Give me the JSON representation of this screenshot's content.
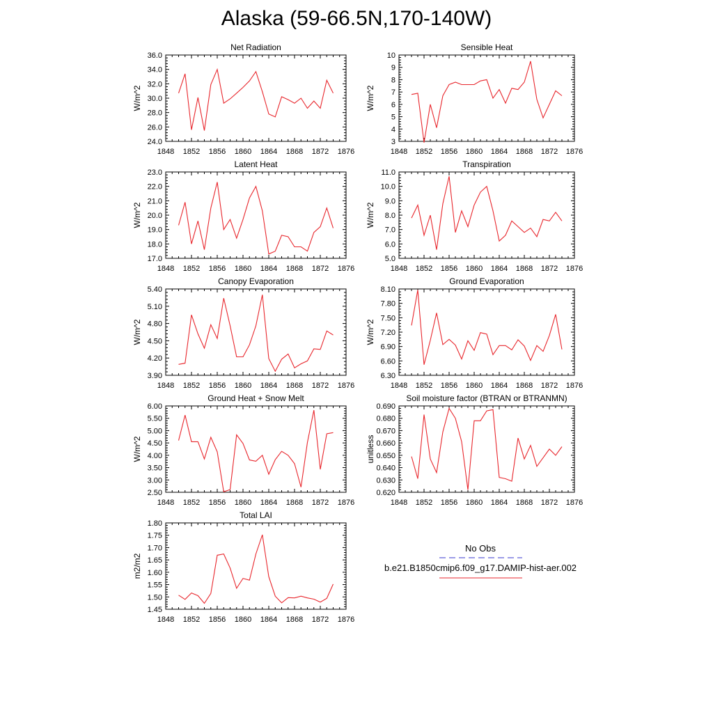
{
  "title": "Alaska (59-66.5N,170-140W)",
  "colors": {
    "model_line": "#e8262c",
    "obs_line": "#3a3acf",
    "axis": "#000000"
  },
  "legend": {
    "obs_label": "No Obs",
    "model_label": "b.e21.B1850cmip6.f09_g17.DAMIP-hist-aer.002"
  },
  "chart_data": [
    {
      "type": "line",
      "title": "Net Radiation",
      "ylabel": "W/m^2",
      "xlim": [
        1848,
        1876
      ],
      "ylim": [
        24,
        36
      ],
      "xticks": [
        "1848",
        "1852",
        "1856",
        "1860",
        "1864",
        "1868",
        "1872",
        "1876"
      ],
      "yticks": [
        "24.0",
        "26.0",
        "28.0",
        "30.0",
        "32.0",
        "34.0",
        "36.0"
      ],
      "x": [
        1850,
        1851,
        1852,
        1853,
        1854,
        1855,
        1856,
        1857,
        1858,
        1859,
        1860,
        1861,
        1862,
        1863,
        1864,
        1865,
        1866,
        1867,
        1868,
        1869,
        1870,
        1871,
        1872,
        1873,
        1874
      ],
      "series": [
        {
          "values": [
            30.7,
            33.4,
            25.6,
            30.1,
            25.5,
            31.9,
            34.0,
            29.3,
            29.9,
            30.7,
            31.5,
            32.4,
            33.7,
            30.9,
            27.8,
            27.4,
            30.2,
            29.8,
            29.3,
            30.0,
            28.6,
            29.6,
            28.6,
            32.5,
            30.7
          ]
        }
      ]
    },
    {
      "type": "line",
      "title": "Sensible Heat",
      "ylabel": "W/m^2",
      "xlim": [
        1848,
        1876
      ],
      "ylim": [
        3,
        10
      ],
      "xticks": [
        "1848",
        "1852",
        "1856",
        "1860",
        "1864",
        "1868",
        "1872",
        "1876"
      ],
      "yticks": [
        "3",
        "4",
        "5",
        "6",
        "7",
        "8",
        "9",
        "10"
      ],
      "x": [
        1850,
        1851,
        1852,
        1853,
        1854,
        1855,
        1856,
        1857,
        1858,
        1859,
        1860,
        1861,
        1862,
        1863,
        1864,
        1865,
        1866,
        1867,
        1868,
        1869,
        1870,
        1871,
        1872,
        1873,
        1874
      ],
      "series": [
        {
          "values": [
            6.8,
            6.9,
            2.9,
            6.0,
            4.1,
            6.7,
            7.6,
            7.8,
            7.6,
            7.6,
            7.6,
            7.9,
            8.0,
            6.5,
            7.2,
            6.1,
            7.3,
            7.2,
            7.8,
            9.5,
            6.4,
            4.9,
            6.0,
            7.1,
            6.7
          ]
        }
      ]
    },
    {
      "type": "line",
      "title": "Latent Heat",
      "ylabel": "W/m^2",
      "xlim": [
        1848,
        1876
      ],
      "ylim": [
        17,
        23
      ],
      "xticks": [
        "1848",
        "1852",
        "1856",
        "1860",
        "1864",
        "1868",
        "1872",
        "1876"
      ],
      "yticks": [
        "17.0",
        "18.0",
        "19.0",
        "20.0",
        "21.0",
        "22.0",
        "23.0"
      ],
      "x": [
        1850,
        1851,
        1852,
        1853,
        1854,
        1855,
        1856,
        1857,
        1858,
        1859,
        1860,
        1861,
        1862,
        1863,
        1864,
        1865,
        1866,
        1867,
        1868,
        1869,
        1870,
        1871,
        1872,
        1873,
        1874
      ],
      "series": [
        {
          "values": [
            19.3,
            20.9,
            18.0,
            19.6,
            17.6,
            20.5,
            22.3,
            19.0,
            19.7,
            18.4,
            19.7,
            21.2,
            22.0,
            20.3,
            17.3,
            17.5,
            18.6,
            18.5,
            17.8,
            17.8,
            17.5,
            18.8,
            19.2,
            20.5,
            19.1
          ]
        }
      ]
    },
    {
      "type": "line",
      "title": "Transpiration",
      "ylabel": "W/m^2",
      "xlim": [
        1848,
        1876
      ],
      "ylim": [
        5,
        11
      ],
      "xticks": [
        "1848",
        "1852",
        "1856",
        "1860",
        "1864",
        "1868",
        "1872",
        "1876"
      ],
      "yticks": [
        "5.0",
        "6.0",
        "7.0",
        "8.0",
        "9.0",
        "10.0",
        "11.0"
      ],
      "x": [
        1850,
        1851,
        1852,
        1853,
        1854,
        1855,
        1856,
        1857,
        1858,
        1859,
        1860,
        1861,
        1862,
        1863,
        1864,
        1865,
        1866,
        1867,
        1868,
        1869,
        1870,
        1871,
        1872,
        1873,
        1874
      ],
      "series": [
        {
          "values": [
            7.8,
            8.7,
            6.6,
            8.0,
            5.6,
            8.8,
            10.7,
            6.8,
            8.3,
            7.2,
            8.7,
            9.6,
            10.0,
            8.3,
            6.2,
            6.6,
            7.6,
            7.2,
            6.8,
            7.1,
            6.5,
            7.7,
            7.6,
            8.2,
            7.6
          ]
        }
      ]
    },
    {
      "type": "line",
      "title": "Canopy Evaporation",
      "ylabel": "W/m^2",
      "xlim": [
        1848,
        1876
      ],
      "ylim": [
        3.9,
        5.4
      ],
      "xticks": [
        "1848",
        "1852",
        "1856",
        "1860",
        "1864",
        "1868",
        "1872",
        "1876"
      ],
      "yticks": [
        "3.90",
        "4.20",
        "4.50",
        "4.80",
        "5.10",
        "5.40"
      ],
      "x": [
        1850,
        1851,
        1852,
        1853,
        1854,
        1855,
        1856,
        1857,
        1858,
        1859,
        1860,
        1861,
        1862,
        1863,
        1864,
        1865,
        1866,
        1867,
        1868,
        1869,
        1870,
        1871,
        1872,
        1873,
        1874
      ],
      "series": [
        {
          "values": [
            4.09,
            4.11,
            4.95,
            4.62,
            4.37,
            4.78,
            4.54,
            5.24,
            4.76,
            4.22,
            4.22,
            4.43,
            4.76,
            5.3,
            4.19,
            3.97,
            4.18,
            4.27,
            4.03,
            4.1,
            4.15,
            4.36,
            4.35,
            4.67,
            4.6
          ]
        }
      ]
    },
    {
      "type": "line",
      "title": "Ground Evaporation",
      "ylabel": "W/m^2",
      "xlim": [
        1848,
        1876
      ],
      "ylim": [
        6.3,
        8.1
      ],
      "xticks": [
        "1848",
        "1852",
        "1856",
        "1860",
        "1864",
        "1868",
        "1872",
        "1876"
      ],
      "yticks": [
        "6.30",
        "6.60",
        "6.90",
        "7.20",
        "7.50",
        "7.80",
        "8.10"
      ],
      "x": [
        1850,
        1851,
        1852,
        1853,
        1854,
        1855,
        1856,
        1857,
        1858,
        1859,
        1860,
        1861,
        1862,
        1863,
        1864,
        1865,
        1866,
        1867,
        1868,
        1869,
        1870,
        1871,
        1872,
        1873,
        1874
      ],
      "series": [
        {
          "values": [
            7.34,
            8.08,
            6.52,
            7.03,
            7.6,
            6.94,
            7.05,
            6.93,
            6.64,
            7.02,
            6.82,
            7.19,
            7.16,
            6.73,
            6.92,
            6.92,
            6.83,
            7.04,
            6.91,
            6.61,
            6.92,
            6.8,
            7.13,
            7.57,
            6.84
          ]
        }
      ]
    },
    {
      "type": "line",
      "title": "Ground Heat + Snow Melt",
      "ylabel": "W/m^2",
      "xlim": [
        1848,
        1876
      ],
      "ylim": [
        2.5,
        6.0
      ],
      "xticks": [
        "1848",
        "1852",
        "1856",
        "1860",
        "1864",
        "1868",
        "1872",
        "1876"
      ],
      "yticks": [
        "2.50",
        "3.00",
        "3.50",
        "4.00",
        "4.50",
        "5.00",
        "5.50",
        "6.00"
      ],
      "x": [
        1850,
        1851,
        1852,
        1853,
        1854,
        1855,
        1856,
        1857,
        1858,
        1859,
        1860,
        1861,
        1862,
        1863,
        1864,
        1865,
        1866,
        1867,
        1868,
        1869,
        1870,
        1871,
        1872,
        1873,
        1874
      ],
      "series": [
        {
          "values": [
            4.6,
            5.63,
            4.55,
            4.55,
            3.85,
            4.73,
            4.14,
            2.52,
            2.61,
            4.83,
            4.48,
            3.81,
            3.76,
            4.0,
            3.23,
            3.82,
            4.16,
            4.0,
            3.66,
            2.71,
            4.52,
            5.83,
            3.43,
            4.87,
            4.92
          ]
        }
      ]
    },
    {
      "type": "line",
      "title": "Soil moisture factor (BTRAN or BTRANMN)",
      "ylabel": "unitless",
      "xlim": [
        1848,
        1876
      ],
      "ylim": [
        0.62,
        0.69
      ],
      "xticks": [
        "1848",
        "1852",
        "1856",
        "1860",
        "1864",
        "1868",
        "1872",
        "1876"
      ],
      "yticks": [
        "0.620",
        "0.630",
        "0.640",
        "0.650",
        "0.660",
        "0.670",
        "0.680",
        "0.690"
      ],
      "x": [
        1850,
        1851,
        1852,
        1853,
        1854,
        1855,
        1856,
        1857,
        1858,
        1859,
        1860,
        1861,
        1862,
        1863,
        1864,
        1865,
        1866,
        1867,
        1868,
        1869,
        1870,
        1871,
        1872,
        1873,
        1874
      ],
      "series": [
        {
          "values": [
            0.649,
            0.631,
            0.683,
            0.647,
            0.636,
            0.669,
            0.688,
            0.68,
            0.661,
            0.622,
            0.678,
            0.678,
            0.686,
            0.687,
            0.632,
            0.631,
            0.629,
            0.664,
            0.647,
            0.658,
            0.641,
            0.648,
            0.655,
            0.65,
            0.657
          ]
        }
      ]
    },
    {
      "type": "line",
      "title": "Total LAI",
      "ylabel": "m2/m2",
      "xlim": [
        1848,
        1876
      ],
      "ylim": [
        1.45,
        1.8
      ],
      "xticks": [
        "1848",
        "1852",
        "1856",
        "1860",
        "1864",
        "1868",
        "1872",
        "1876"
      ],
      "yticks": [
        "1.45",
        "1.50",
        "1.55",
        "1.60",
        "1.65",
        "1.70",
        "1.75",
        "1.80"
      ],
      "x": [
        1850,
        1851,
        1852,
        1853,
        1854,
        1855,
        1856,
        1857,
        1858,
        1859,
        1860,
        1861,
        1862,
        1863,
        1864,
        1865,
        1866,
        1867,
        1868,
        1869,
        1870,
        1871,
        1872,
        1873,
        1874
      ],
      "series": [
        {
          "values": [
            1.507,
            1.49,
            1.516,
            1.505,
            1.474,
            1.514,
            1.669,
            1.674,
            1.617,
            1.535,
            1.575,
            1.568,
            1.674,
            1.752,
            1.582,
            1.503,
            1.476,
            1.497,
            1.496,
            1.503,
            1.496,
            1.491,
            1.479,
            1.494,
            1.552
          ]
        }
      ]
    }
  ]
}
